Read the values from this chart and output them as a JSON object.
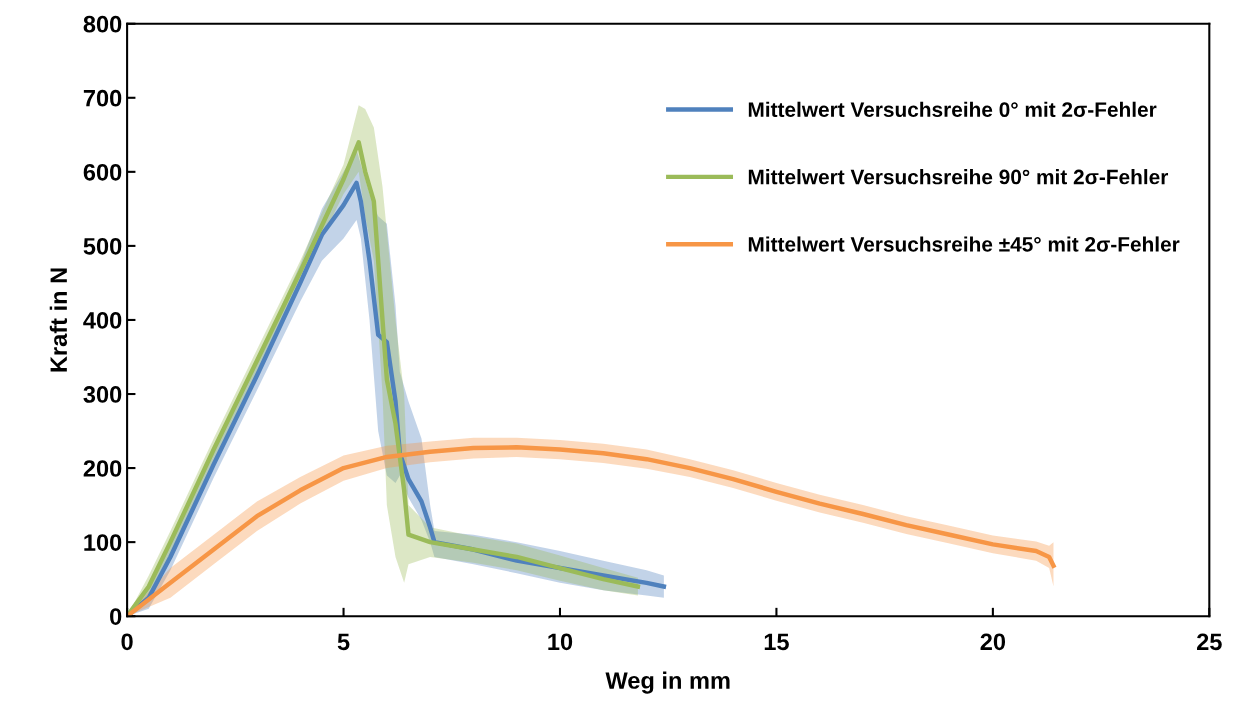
{
  "chart_data": {
    "type": "line",
    "xlabel": "Weg in mm",
    "ylabel": "Kraft in N",
    "xlim": [
      0,
      25
    ],
    "ylim": [
      0,
      800
    ],
    "xticks": [
      0,
      5,
      10,
      15,
      20,
      25
    ],
    "yticks": [
      0,
      100,
      200,
      300,
      400,
      500,
      600,
      700,
      800
    ],
    "grid": false,
    "legend": "top right",
    "marker": "none",
    "line_style": "solid",
    "series": [
      {
        "name": "Mittelwert Versuchsreihe 0° mit 2σ-Fehler",
        "color": "#4f81bd",
        "x": [
          0,
          0.5,
          1,
          2,
          3,
          4,
          4.5,
          5,
          5.3,
          5.4,
          5.6,
          5.8,
          6.0,
          6.2,
          6.3,
          6.5,
          6.8,
          7.0,
          7.1,
          8,
          9,
          10,
          11,
          12,
          12.4
        ],
        "values": [
          0,
          25,
          80,
          205,
          325,
          450,
          515,
          555,
          585,
          560,
          480,
          380,
          370,
          290,
          220,
          185,
          155,
          120,
          100,
          90,
          75,
          65,
          55,
          45,
          40
        ],
        "lower": [
          0,
          10,
          62,
          187,
          305,
          425,
          480,
          510,
          535,
          510,
          400,
          250,
          190,
          180,
          190,
          160,
          130,
          100,
          80,
          70,
          58,
          45,
          35,
          28,
          25
        ],
        "upper": [
          0,
          40,
          98,
          223,
          345,
          475,
          550,
          600,
          630,
          610,
          570,
          540,
          530,
          420,
          330,
          290,
          240,
          150,
          115,
          110,
          100,
          88,
          75,
          62,
          55
        ]
      },
      {
        "name": "Mittelwert Versuchsreihe 90° mit 2σ-Fehler",
        "color": "#9bbb59",
        "x": [
          0,
          0.5,
          1,
          2,
          3,
          4,
          5,
          5.35,
          5.5,
          5.7,
          5.9,
          6.0,
          6.2,
          6.4,
          6.5,
          7,
          8,
          9,
          10,
          11,
          11.8
        ],
        "values": [
          0,
          40,
          100,
          225,
          345,
          465,
          590,
          640,
          600,
          560,
          400,
          320,
          260,
          170,
          110,
          100,
          90,
          80,
          65,
          50,
          40
        ],
        "lower": [
          0,
          25,
          85,
          210,
          330,
          450,
          570,
          600,
          540,
          480,
          300,
          150,
          80,
          45,
          70,
          80,
          72,
          62,
          48,
          35,
          28
        ],
        "upper": [
          0,
          55,
          115,
          240,
          360,
          480,
          610,
          690,
          685,
          660,
          580,
          520,
          400,
          300,
          150,
          120,
          108,
          98,
          82,
          65,
          52
        ]
      },
      {
        "name": "Mittelwert Versuchsreihe ±45° mit 2σ-Fehler",
        "color": "#f79646",
        "x": [
          0,
          1,
          2,
          3,
          4,
          5,
          6,
          7,
          8,
          9,
          10,
          11,
          12,
          13,
          14,
          15,
          16,
          17,
          18,
          19,
          20,
          21,
          21.3,
          21.4
        ],
        "values": [
          0,
          45,
          90,
          135,
          170,
          200,
          215,
          222,
          227,
          228,
          225,
          220,
          212,
          200,
          185,
          168,
          152,
          138,
          123,
          110,
          97,
          88,
          80,
          68
        ],
        "lower": [
          0,
          25,
          70,
          115,
          152,
          183,
          200,
          208,
          213,
          215,
          212,
          207,
          199,
          188,
          173,
          156,
          140,
          126,
          111,
          98,
          85,
          75,
          65,
          40
        ],
        "upper": [
          0,
          65,
          110,
          155,
          188,
          217,
          230,
          236,
          241,
          241,
          238,
          233,
          225,
          212,
          197,
          180,
          164,
          150,
          135,
          122,
          109,
          101,
          95,
          100
        ]
      }
    ]
  }
}
